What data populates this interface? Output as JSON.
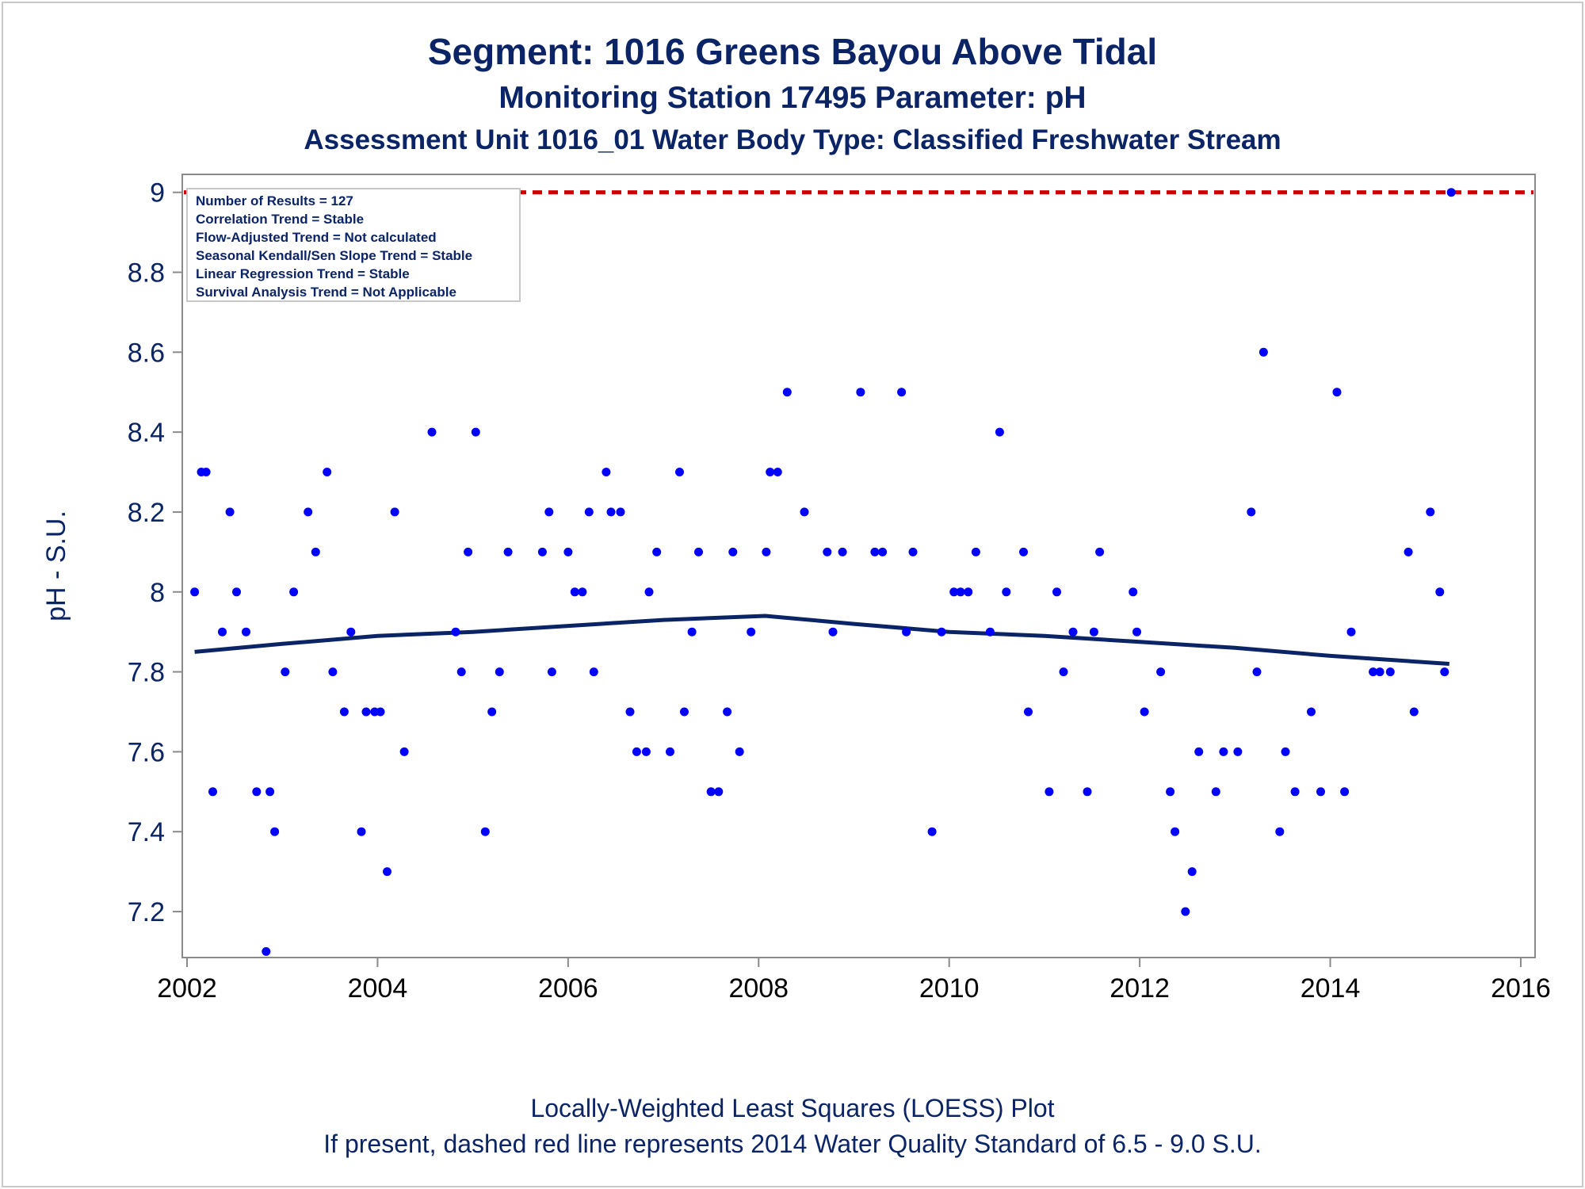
{
  "chart_data": {
    "type": "scatter",
    "title": "Segment: 1016  Greens Bayou Above Tidal",
    "subtitle": "Monitoring Station 17495 Parameter: pH",
    "subtitle2": "Assessment Unit 1016_01   Water Body Type: Classified Freshwater Stream",
    "ylabel": "pH - S.U.",
    "xlabel": "",
    "footnote1": "Locally-Weighted Least Squares (LOESS) Plot",
    "footnote2": "If present, dashed red line represents 2014 Water Quality Standard of 6.5 - 9.0 S.U.",
    "xlim": [
      2001.95,
      2016.15
    ],
    "ylim": [
      7.085,
      9.045
    ],
    "xticks": [
      2002,
      2004,
      2006,
      2008,
      2010,
      2012,
      2014,
      2016
    ],
    "yticks": [
      7.2,
      7.4,
      7.6,
      7.8,
      8.0,
      8.2,
      8.4,
      8.6,
      8.8,
      9.0
    ],
    "ytick_labels": [
      "7.2",
      "7.4",
      "7.6",
      "7.8",
      "8",
      "8.2",
      "8.4",
      "8.6",
      "8.8",
      "9"
    ],
    "grid": false,
    "standard_line": {
      "y": 9.0,
      "color": "#cc0000",
      "style": "dashed"
    },
    "point_color": "#0000ff",
    "loess_color": "#0b2466",
    "stats_box": [
      "Number of Results = 127",
      "Correlation Trend = Stable",
      "Flow-Adjusted Trend = Not calculated",
      "Seasonal Kendall/Sen Slope Trend = Stable",
      "Linear Regression Trend = Stable",
      "Survival Analysis Trend = Not Applicable"
    ],
    "loess": [
      [
        2002.08,
        7.85
      ],
      [
        2003.0,
        7.87
      ],
      [
        2004.0,
        7.89
      ],
      [
        2005.0,
        7.9
      ],
      [
        2006.0,
        7.915
      ],
      [
        2007.0,
        7.93
      ],
      [
        2008.07,
        7.94
      ],
      [
        2009.0,
        7.92
      ],
      [
        2010.0,
        7.9
      ],
      [
        2011.0,
        7.89
      ],
      [
        2012.0,
        7.875
      ],
      [
        2013.0,
        7.86
      ],
      [
        2014.0,
        7.84
      ],
      [
        2015.25,
        7.82
      ]
    ],
    "points": [
      [
        2002.08,
        8.0
      ],
      [
        2002.15,
        8.3
      ],
      [
        2002.2,
        8.3
      ],
      [
        2002.27,
        7.5
      ],
      [
        2002.37,
        7.9
      ],
      [
        2002.45,
        8.2
      ],
      [
        2002.52,
        8.0
      ],
      [
        2002.62,
        7.9
      ],
      [
        2002.73,
        7.5
      ],
      [
        2002.83,
        7.1
      ],
      [
        2002.87,
        7.5
      ],
      [
        2002.92,
        7.4
      ],
      [
        2003.03,
        7.8
      ],
      [
        2003.12,
        8.0
      ],
      [
        2003.27,
        8.2
      ],
      [
        2003.35,
        8.1
      ],
      [
        2003.47,
        8.3
      ],
      [
        2003.53,
        7.8
      ],
      [
        2003.65,
        7.7
      ],
      [
        2003.72,
        7.9
      ],
      [
        2003.83,
        7.4
      ],
      [
        2003.88,
        7.7
      ],
      [
        2003.97,
        7.7
      ],
      [
        2004.03,
        7.7
      ],
      [
        2004.1,
        7.3
      ],
      [
        2004.18,
        8.2
      ],
      [
        2004.28,
        7.6
      ],
      [
        2004.57,
        8.4
      ],
      [
        2004.82,
        7.9
      ],
      [
        2004.88,
        7.8
      ],
      [
        2004.95,
        8.1
      ],
      [
        2005.03,
        8.4
      ],
      [
        2005.13,
        7.4
      ],
      [
        2005.2,
        7.7
      ],
      [
        2005.28,
        7.8
      ],
      [
        2005.37,
        8.1
      ],
      [
        2005.73,
        8.1
      ],
      [
        2005.8,
        8.2
      ],
      [
        2005.83,
        7.8
      ],
      [
        2006.0,
        8.1
      ],
      [
        2006.07,
        8.0
      ],
      [
        2006.15,
        8.0
      ],
      [
        2006.22,
        8.2
      ],
      [
        2006.27,
        7.8
      ],
      [
        2006.4,
        8.3
      ],
      [
        2006.45,
        8.2
      ],
      [
        2006.55,
        8.2
      ],
      [
        2006.65,
        7.7
      ],
      [
        2006.72,
        7.6
      ],
      [
        2006.82,
        7.6
      ],
      [
        2006.85,
        8.0
      ],
      [
        2006.93,
        8.1
      ],
      [
        2007.07,
        7.6
      ],
      [
        2007.17,
        8.3
      ],
      [
        2007.22,
        7.7
      ],
      [
        2007.3,
        7.9
      ],
      [
        2007.37,
        8.1
      ],
      [
        2007.5,
        7.5
      ],
      [
        2007.58,
        7.5
      ],
      [
        2007.67,
        7.7
      ],
      [
        2007.73,
        8.1
      ],
      [
        2007.8,
        7.6
      ],
      [
        2007.92,
        7.9
      ],
      [
        2008.08,
        8.1
      ],
      [
        2008.12,
        8.3
      ],
      [
        2008.2,
        8.3
      ],
      [
        2008.3,
        8.5
      ],
      [
        2008.48,
        8.2
      ],
      [
        2008.72,
        8.1
      ],
      [
        2008.78,
        7.9
      ],
      [
        2008.88,
        8.1
      ],
      [
        2009.07,
        8.5
      ],
      [
        2009.22,
        8.1
      ],
      [
        2009.3,
        8.1
      ],
      [
        2009.5,
        8.5
      ],
      [
        2009.55,
        7.9
      ],
      [
        2009.62,
        8.1
      ],
      [
        2009.82,
        7.4
      ],
      [
        2009.92,
        7.9
      ],
      [
        2010.05,
        8.0
      ],
      [
        2010.12,
        8.0
      ],
      [
        2010.2,
        8.0
      ],
      [
        2010.28,
        8.1
      ],
      [
        2010.43,
        7.9
      ],
      [
        2010.53,
        8.4
      ],
      [
        2010.6,
        8.0
      ],
      [
        2010.78,
        8.1
      ],
      [
        2010.83,
        7.7
      ],
      [
        2011.05,
        7.5
      ],
      [
        2011.13,
        8.0
      ],
      [
        2011.2,
        7.8
      ],
      [
        2011.3,
        7.9
      ],
      [
        2011.45,
        7.5
      ],
      [
        2011.52,
        7.9
      ],
      [
        2011.58,
        8.1
      ],
      [
        2011.93,
        8.0
      ],
      [
        2011.97,
        7.9
      ],
      [
        2012.05,
        7.7
      ],
      [
        2012.22,
        7.8
      ],
      [
        2012.32,
        7.5
      ],
      [
        2012.37,
        7.4
      ],
      [
        2012.48,
        7.2
      ],
      [
        2012.55,
        7.3
      ],
      [
        2012.62,
        7.6
      ],
      [
        2012.8,
        7.5
      ],
      [
        2012.88,
        7.6
      ],
      [
        2013.03,
        7.6
      ],
      [
        2013.17,
        8.2
      ],
      [
        2013.23,
        7.8
      ],
      [
        2013.3,
        8.6
      ],
      [
        2013.47,
        7.4
      ],
      [
        2013.53,
        7.6
      ],
      [
        2013.63,
        7.5
      ],
      [
        2013.8,
        7.7
      ],
      [
        2013.9,
        7.5
      ],
      [
        2014.07,
        8.5
      ],
      [
        2014.15,
        7.5
      ],
      [
        2014.22,
        7.9
      ],
      [
        2014.45,
        7.8
      ],
      [
        2014.52,
        7.8
      ],
      [
        2014.63,
        7.8
      ],
      [
        2014.82,
        8.1
      ],
      [
        2014.88,
        7.7
      ],
      [
        2015.05,
        8.2
      ],
      [
        2015.15,
        8.0
      ],
      [
        2015.2,
        7.8
      ],
      [
        2015.27,
        9.0
      ]
    ]
  }
}
